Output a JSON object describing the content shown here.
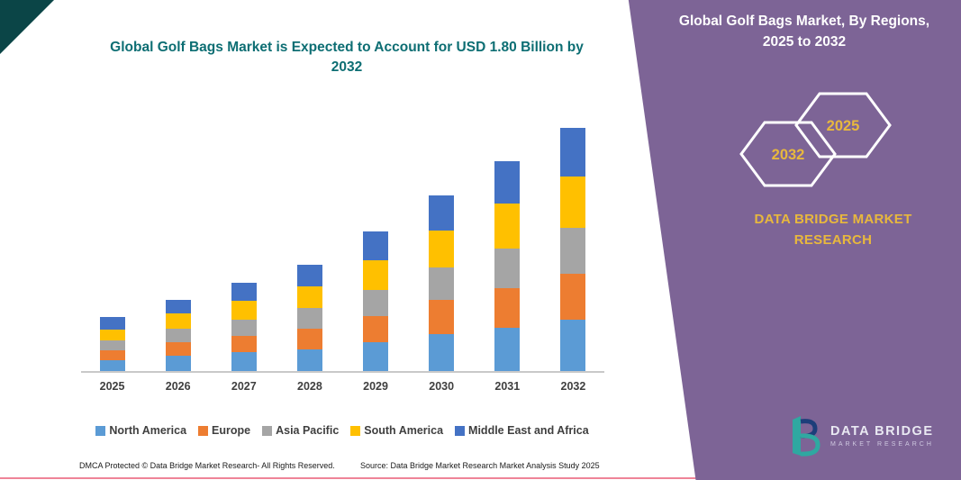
{
  "colors": {
    "teal": "#0d6e73",
    "purple": "#7d6496",
    "corner": "#0b4547",
    "gold": "#e8b83d",
    "axis": "#c9c9c9",
    "label": "#3f3f3f",
    "line_pink": "#ef8498"
  },
  "left": {
    "title": "Global Golf Bags Market is Expected to Account for USD 1.80 Billion by 2032",
    "footer_dmca": "DMCA Protected © Data Bridge Market Research-  All Rights Reserved.",
    "footer_source": "Source: Data Bridge Market Research  Market Analysis Study 2025"
  },
  "right": {
    "title": "Global Golf Bags Market, By Regions, 2025 to 2032",
    "hexagons": [
      "2032",
      "2025"
    ],
    "brand": "DATA BRIDGE MARKET RESEARCH",
    "logo_name": "DATA BRIDGE",
    "logo_sub": "MARKET RESEARCH"
  },
  "chart_data": {
    "type": "bar",
    "stacked": true,
    "title": "Global Golf Bags Market is Expected to Account for USD 1.80 Billion by 2032",
    "unit": "USD Billion",
    "categories": [
      "2025",
      "2026",
      "2027",
      "2028",
      "2029",
      "2030",
      "2031",
      "2032"
    ],
    "series": [
      {
        "name": "North America",
        "color": "#5B9BD5",
        "values": [
          0.08,
          0.11,
          0.14,
          0.16,
          0.21,
          0.27,
          0.32,
          0.38
        ]
      },
      {
        "name": "Europe",
        "color": "#ED7D31",
        "values": [
          0.07,
          0.1,
          0.12,
          0.15,
          0.19,
          0.25,
          0.29,
          0.34
        ]
      },
      {
        "name": "Asia Pacific",
        "color": "#A5A5A5",
        "values": [
          0.07,
          0.1,
          0.12,
          0.15,
          0.19,
          0.24,
          0.29,
          0.34
        ]
      },
      {
        "name": "South America",
        "color": "#FFC000",
        "values": [
          0.08,
          0.11,
          0.14,
          0.16,
          0.22,
          0.27,
          0.33,
          0.38
        ]
      },
      {
        "name": "Middle East and Africa",
        "color": "#4472C4",
        "values": [
          0.09,
          0.1,
          0.13,
          0.16,
          0.21,
          0.26,
          0.31,
          0.36
        ]
      }
    ],
    "totals": [
      0.39,
      0.52,
      0.65,
      0.78,
      1.02,
      1.29,
      1.54,
      1.8
    ],
    "ylim": [
      0,
      1.9
    ],
    "grid": false,
    "legend_position": "bottom"
  }
}
